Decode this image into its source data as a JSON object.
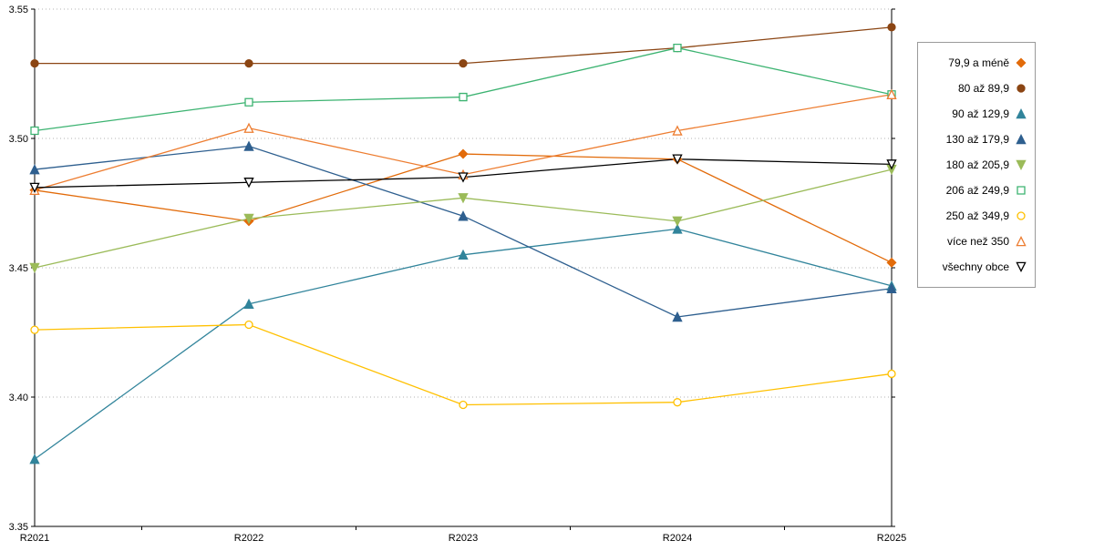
{
  "chart_data": {
    "type": "line",
    "title": "",
    "xlabel": "",
    "ylabel": "",
    "categories": [
      "R2021",
      "R2022",
      "R2023",
      "R2024",
      "R2025"
    ],
    "ylim": [
      3.35,
      3.55
    ],
    "yticks": [
      3.35,
      3.4,
      3.45,
      3.5,
      3.55
    ],
    "grid": "horizontal-dotted",
    "legend_position": "right",
    "series": [
      {
        "name": "79,9 a méně",
        "color": "#E26B0A",
        "marker": "diamond",
        "fill": "filled",
        "values": [
          3.48,
          3.468,
          3.494,
          3.492,
          3.452
        ]
      },
      {
        "name": "80 až 89,9",
        "color": "#8B4513",
        "marker": "circle",
        "fill": "filled",
        "values": [
          3.529,
          3.529,
          3.529,
          3.535,
          3.543
        ]
      },
      {
        "name": "90 až 129,9",
        "color": "#31849B",
        "marker": "triangle-up",
        "fill": "filled",
        "values": [
          3.376,
          3.436,
          3.455,
          3.465,
          3.443
        ]
      },
      {
        "name": "130 až 179,9",
        "color": "#2E5F8F",
        "marker": "triangle-up",
        "fill": "filled",
        "values": [
          3.488,
          3.497,
          3.47,
          3.431,
          3.442
        ]
      },
      {
        "name": "180 až 205,9",
        "color": "#9BBB59",
        "marker": "triangle-down",
        "fill": "filled",
        "values": [
          3.45,
          3.469,
          3.477,
          3.468,
          3.488
        ]
      },
      {
        "name": "206 až 249,9",
        "color": "#3CB371",
        "marker": "square",
        "fill": "open",
        "values": [
          3.503,
          3.514,
          3.516,
          3.535,
          3.517
        ]
      },
      {
        "name": "250 až 349,9",
        "color": "#FFC000",
        "marker": "circle",
        "fill": "open",
        "values": [
          3.426,
          3.428,
          3.397,
          3.398,
          3.409
        ]
      },
      {
        "name": "více než 350",
        "color": "#ED7D31",
        "marker": "triangle-up",
        "fill": "open",
        "values": [
          3.48,
          3.504,
          3.486,
          3.503,
          3.517
        ]
      },
      {
        "name": "všechny obce",
        "color": "#000000",
        "marker": "triangle-down",
        "fill": "open",
        "values": [
          3.481,
          3.483,
          3.485,
          3.492,
          3.49
        ]
      }
    ]
  }
}
